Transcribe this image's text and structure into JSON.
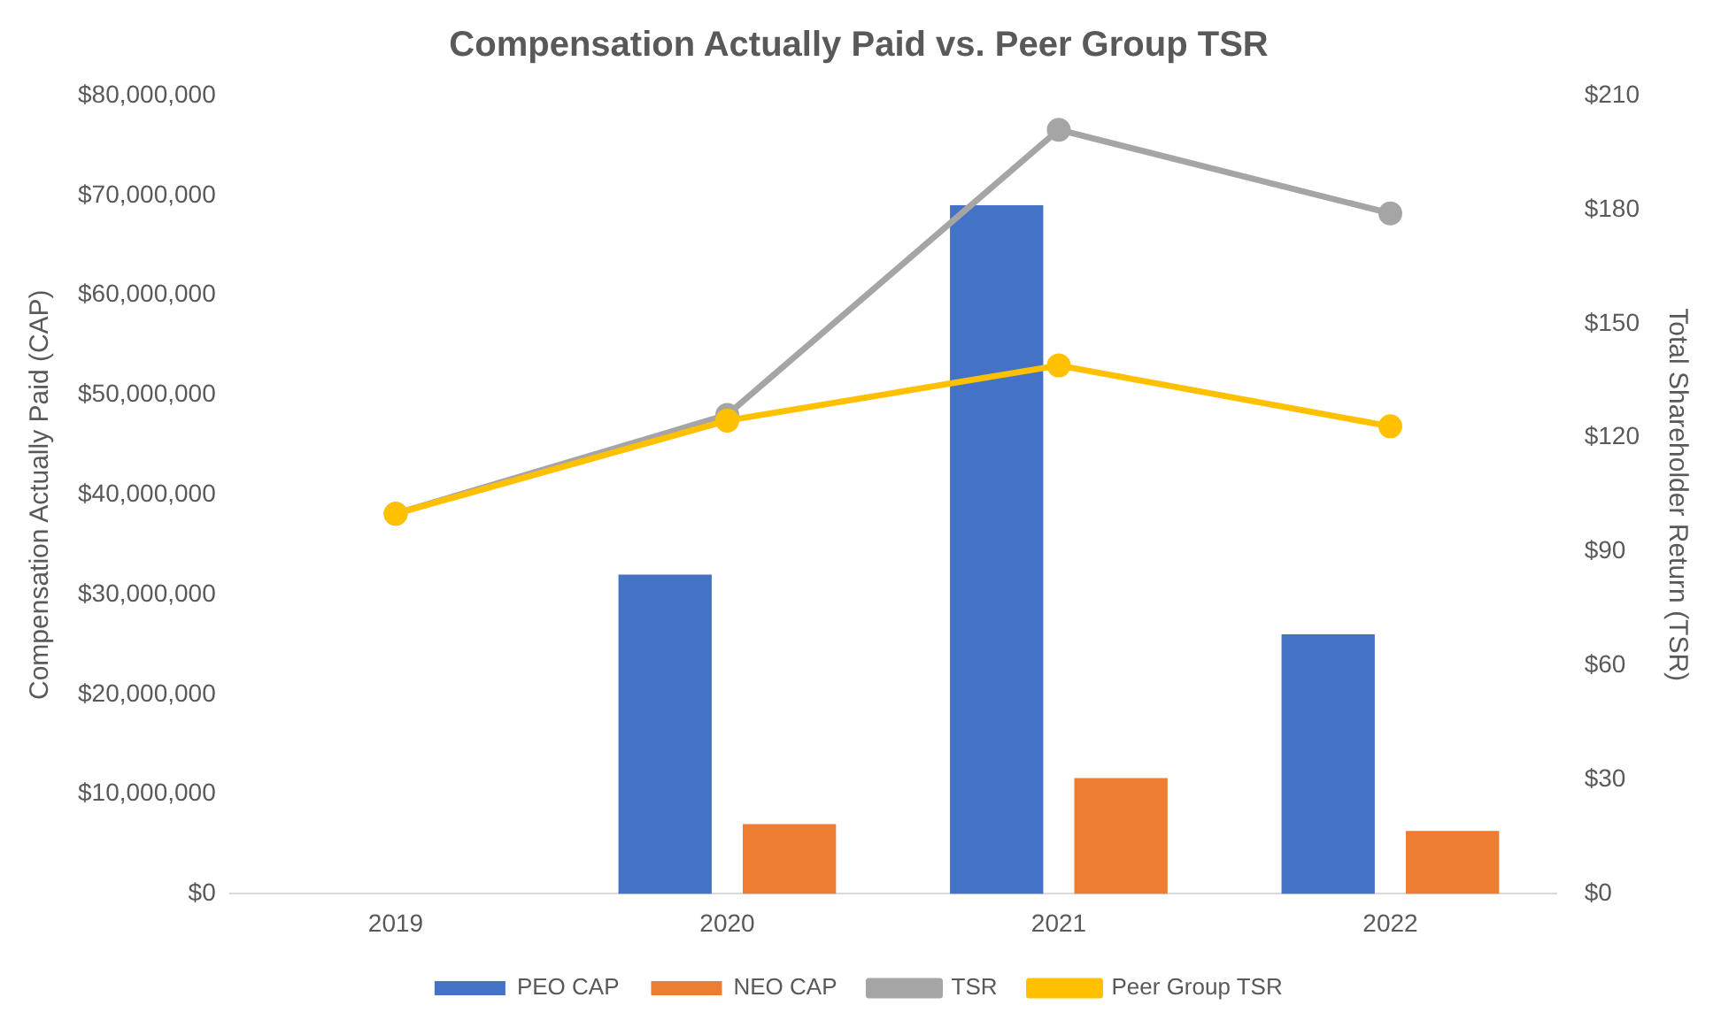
{
  "chart_data": {
    "type": "bar",
    "title": "Compensation Actually Paid vs. Peer Group TSR",
    "ylabel": "Compensation Actually Paid (CAP)",
    "y2label": "Total Shareholder Return (TSR)",
    "categories": [
      "2019",
      "2020",
      "2021",
      "2022"
    ],
    "series": [
      {
        "name": "PEO CAP",
        "color": "#4472c4",
        "values": [
          null,
          32000000,
          69000000,
          26000000
        ]
      },
      {
        "name": "NEO CAP",
        "color": "#ed7d31",
        "values": [
          null,
          7000000,
          11600000,
          6300000
        ]
      },
      {
        "name": "TSR",
        "type": "line",
        "axis": "y2",
        "color": "#a5a5a5",
        "values": [
          100,
          126,
          201,
          179
        ]
      },
      {
        "name": "Peer Group TSR",
        "type": "line",
        "axis": "y2",
        "color": "#ffc000",
        "values": [
          100,
          124.5,
          139,
          123
        ]
      }
    ],
    "ylim": [
      0,
      80000000
    ],
    "yticks": [
      {
        "value": 0,
        "label": "$0"
      },
      {
        "value": 10000000,
        "label": "$10,000,000"
      },
      {
        "value": 20000000,
        "label": "$20,000,000"
      },
      {
        "value": 30000000,
        "label": "$30,000,000"
      },
      {
        "value": 40000000,
        "label": "$40,000,000"
      },
      {
        "value": 50000000,
        "label": "$50,000,000"
      },
      {
        "value": 60000000,
        "label": "$60,000,000"
      },
      {
        "value": 70000000,
        "label": "$70,000,000"
      },
      {
        "value": 80000000,
        "label": "$80,000,000"
      }
    ],
    "y2lim": [
      0,
      210
    ],
    "y2ticks": [
      {
        "value": 0,
        "label": "$0"
      },
      {
        "value": 30,
        "label": "$30"
      },
      {
        "value": 60,
        "label": "$60"
      },
      {
        "value": 90,
        "label": "$90"
      },
      {
        "value": 120,
        "label": "$120"
      },
      {
        "value": 150,
        "label": "$150"
      },
      {
        "value": 180,
        "label": "$180"
      },
      {
        "value": 210,
        "label": "$210"
      }
    ],
    "grid": false,
    "legend": "bottom",
    "marker": "circle",
    "line_style": "solid"
  }
}
